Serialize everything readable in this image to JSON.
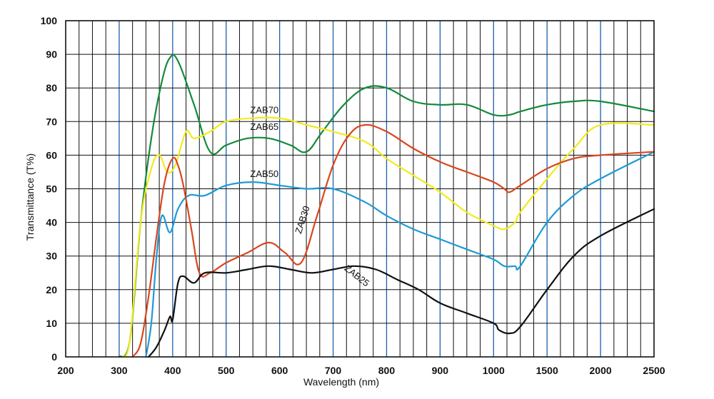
{
  "chart_data": {
    "type": "line",
    "xlabel": "Wavelength (nm)",
    "ylabel": "Transmittance (T%)",
    "ylim": [
      0,
      100
    ],
    "grid": true,
    "x_tick_labels": [
      "200",
      "300",
      "400",
      "500",
      "600",
      "700",
      "800",
      "900",
      "1000",
      "1500",
      "2000",
      "2500"
    ],
    "y_tick_labels": [
      "0",
      "10",
      "20",
      "30",
      "40",
      "50",
      "60",
      "70",
      "80",
      "90",
      "100"
    ],
    "colors": {
      "grid_minor": "#111111",
      "grid_major": "#1f5fa8",
      "ZAB70": "#138a3a",
      "ZAB65": "#f2ea1b",
      "ZAB50": "#1e9ad6",
      "ZAB30": "#d9461e",
      "ZAB25": "#111111"
    },
    "series": [
      {
        "name": "ZAB70",
        "x": [
          300,
          320,
          340,
          360,
          380,
          395,
          410,
          440,
          470,
          500,
          540,
          580,
          620,
          650,
          680,
          720,
          760,
          800,
          850,
          900,
          950,
          1000,
          1150,
          1250,
          1500,
          1750,
          2000,
          2500
        ],
        "y": [
          0,
          5,
          40,
          65,
          82,
          89,
          88,
          75,
          61,
          63,
          65,
          65,
          63,
          61,
          67,
          75,
          80,
          80,
          76,
          75,
          75,
          72,
          72,
          73,
          75,
          76,
          76,
          73
        ]
      },
      {
        "name": "ZAB65",
        "x": [
          305,
          320,
          340,
          360,
          375,
          390,
          405,
          425,
          440,
          470,
          500,
          550,
          600,
          650,
          700,
          760,
          800,
          850,
          900,
          950,
          1000,
          1100,
          1200,
          1250,
          1500,
          1750,
          2000,
          2500
        ],
        "y": [
          0,
          5,
          40,
          56,
          60,
          55,
          57,
          67,
          65,
          67,
          70,
          71,
          71,
          69,
          67,
          64,
          59,
          54,
          49,
          43,
          39,
          38,
          40,
          43,
          53,
          62,
          69,
          69
        ]
      },
      {
        "name": "ZAB50",
        "x": [
          350,
          360,
          370,
          380,
          395,
          410,
          430,
          460,
          500,
          550,
          600,
          650,
          700,
          760,
          800,
          850,
          900,
          950,
          1000,
          1100,
          1200,
          1250,
          1500,
          1750,
          2000,
          2500
        ],
        "y": [
          0,
          10,
          30,
          42,
          37,
          44,
          48,
          48,
          51,
          52,
          51,
          50,
          50,
          46,
          42,
          38,
          35,
          32,
          29,
          27,
          27,
          27,
          40,
          48,
          53,
          61
        ]
      },
      {
        "name": "ZAB30",
        "x": [
          325,
          340,
          355,
          370,
          385,
          400,
          410,
          420,
          435,
          450,
          470,
          500,
          540,
          580,
          610,
          640,
          670,
          700,
          730,
          760,
          800,
          850,
          900,
          950,
          1000,
          1100,
          1150,
          1250,
          1500,
          1750,
          2000,
          2500
        ],
        "y": [
          0,
          4,
          18,
          36,
          52,
          59,
          57,
          51,
          38,
          25,
          25,
          28,
          31,
          34,
          31,
          28,
          42,
          57,
          66,
          69,
          67,
          62,
          58,
          55,
          52,
          50,
          49,
          51,
          56,
          59,
          60,
          61
        ]
      },
      {
        "name": "ZAB25",
        "x": [
          355,
          370,
          385,
          395,
          400,
          410,
          420,
          440,
          460,
          500,
          540,
          580,
          620,
          660,
          700,
          740,
          780,
          820,
          860,
          900,
          950,
          1000,
          1050,
          1150,
          1250,
          1500,
          1750,
          2000,
          2500
        ],
        "y": [
          0,
          3,
          8,
          12,
          11,
          22,
          24,
          22,
          25,
          25,
          26,
          27,
          26,
          25,
          26,
          27,
          26,
          23,
          20,
          16,
          13,
          10,
          8,
          7,
          9,
          20,
          30,
          36,
          44
        ]
      }
    ],
    "annotations": [
      {
        "text": "ZAB70",
        "series": "ZAB70"
      },
      {
        "text": "ZAB65",
        "series": "ZAB65"
      },
      {
        "text": "ZAB50",
        "series": "ZAB50"
      },
      {
        "text": "ZAB30",
        "series": "ZAB30"
      },
      {
        "text": "ZAB25",
        "series": "ZAB25"
      }
    ]
  }
}
